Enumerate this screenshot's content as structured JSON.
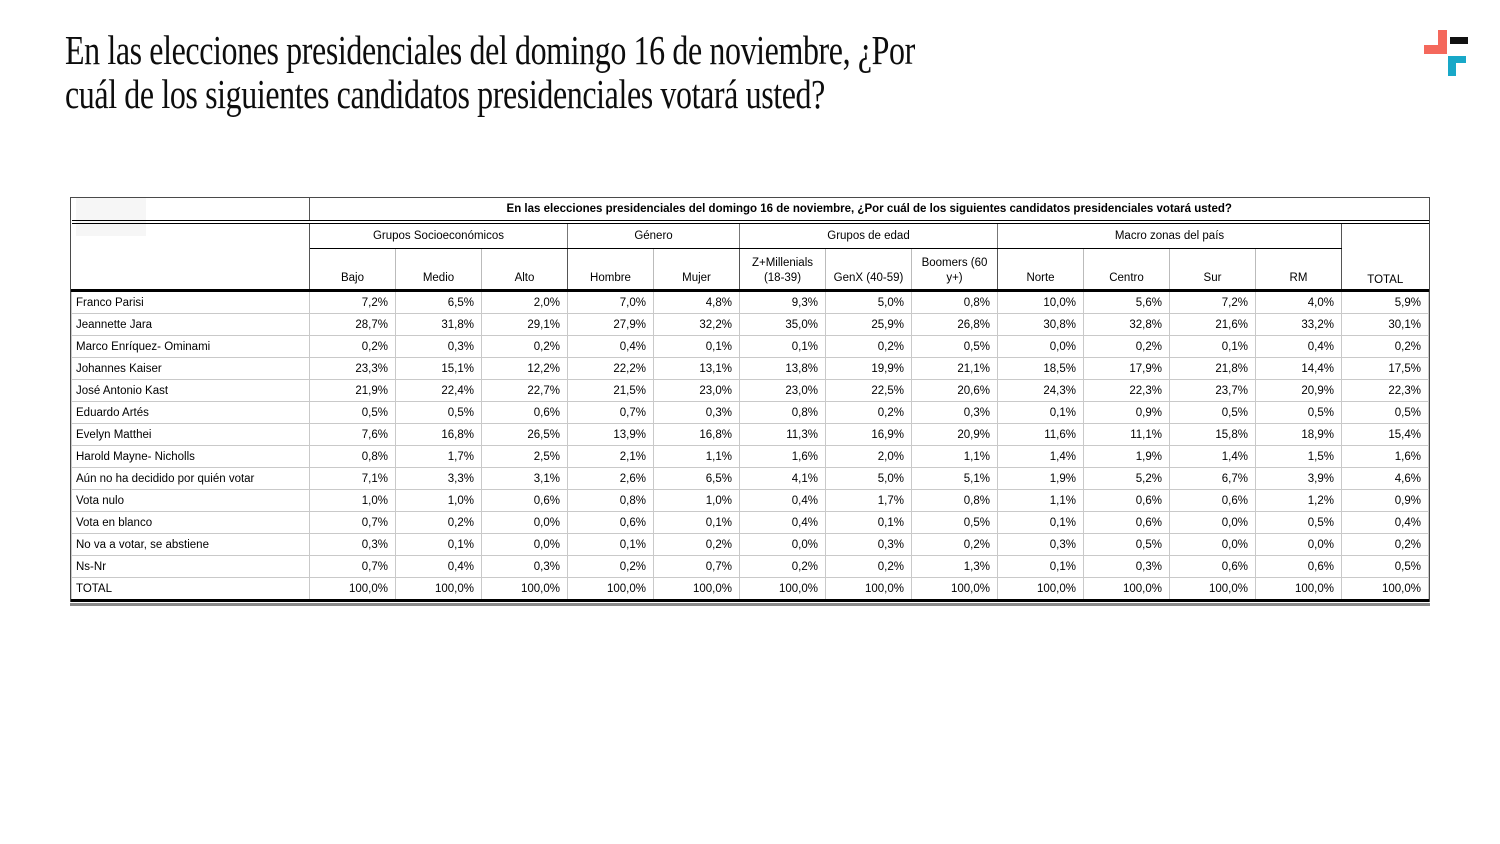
{
  "page": {
    "title": "En las elecciones presidenciales del domingo 16 de noviembre, ¿Por\ncuál de los siguientes candidatos presidenciales votará usted?"
  },
  "logo": {
    "name": "brand-mark",
    "colors": {
      "coral": "#F4685C",
      "teal": "#18A8C8",
      "black": "#111111"
    }
  },
  "table": {
    "question": "En las elecciones presidenciales del domingo 16 de noviembre, ¿Por cuál de los siguientes candidatos presidenciales votará usted?",
    "groups": [
      {
        "label": "Grupos Socioeconómicos",
        "span": 3
      },
      {
        "label": "Género",
        "span": 2
      },
      {
        "label": "Grupos de edad",
        "span": 3
      },
      {
        "label": "Macro zonas del país",
        "span": 4
      }
    ],
    "columns": [
      "Bajo",
      "Medio",
      "Alto",
      "Hombre",
      "Mujer",
      "Z+Millenials (18-39)",
      "GenX (40-59)",
      "Boomers (60 y+)",
      "Norte",
      "Centro",
      "Sur",
      "RM"
    ],
    "total_label": "TOTAL",
    "rows": [
      {
        "label": "Franco Parisi",
        "values": [
          "7,2%",
          "6,5%",
          "2,0%",
          "7,0%",
          "4,8%",
          "9,3%",
          "5,0%",
          "0,8%",
          "10,0%",
          "5,6%",
          "7,2%",
          "4,0%",
          "5,9%"
        ]
      },
      {
        "label": "Jeannette Jara",
        "values": [
          "28,7%",
          "31,8%",
          "29,1%",
          "27,9%",
          "32,2%",
          "35,0%",
          "25,9%",
          "26,8%",
          "30,8%",
          "32,8%",
          "21,6%",
          "33,2%",
          "30,1%"
        ]
      },
      {
        "label": "Marco Enríquez- Ominami",
        "values": [
          "0,2%",
          "0,3%",
          "0,2%",
          "0,4%",
          "0,1%",
          "0,1%",
          "0,2%",
          "0,5%",
          "0,0%",
          "0,2%",
          "0,1%",
          "0,4%",
          "0,2%"
        ]
      },
      {
        "label": "Johannes Kaiser",
        "values": [
          "23,3%",
          "15,1%",
          "12,2%",
          "22,2%",
          "13,1%",
          "13,8%",
          "19,9%",
          "21,1%",
          "18,5%",
          "17,9%",
          "21,8%",
          "14,4%",
          "17,5%"
        ]
      },
      {
        "label": "José Antonio Kast",
        "values": [
          "21,9%",
          "22,4%",
          "22,7%",
          "21,5%",
          "23,0%",
          "23,0%",
          "22,5%",
          "20,6%",
          "24,3%",
          "22,3%",
          "23,7%",
          "20,9%",
          "22,3%"
        ]
      },
      {
        "label": "Eduardo Artés",
        "values": [
          "0,5%",
          "0,5%",
          "0,6%",
          "0,7%",
          "0,3%",
          "0,8%",
          "0,2%",
          "0,3%",
          "0,1%",
          "0,9%",
          "0,5%",
          "0,5%",
          "0,5%"
        ]
      },
      {
        "label": "Evelyn Matthei",
        "values": [
          "7,6%",
          "16,8%",
          "26,5%",
          "13,9%",
          "16,8%",
          "11,3%",
          "16,9%",
          "20,9%",
          "11,6%",
          "11,1%",
          "15,8%",
          "18,9%",
          "15,4%"
        ]
      },
      {
        "label": "Harold Mayne- Nicholls",
        "values": [
          "0,8%",
          "1,7%",
          "2,5%",
          "2,1%",
          "1,1%",
          "1,6%",
          "2,0%",
          "1,1%",
          "1,4%",
          "1,9%",
          "1,4%",
          "1,5%",
          "1,6%"
        ]
      },
      {
        "label": "Aún no ha decidido por quién votar",
        "values": [
          "7,1%",
          "3,3%",
          "3,1%",
          "2,6%",
          "6,5%",
          "4,1%",
          "5,0%",
          "5,1%",
          "1,9%",
          "5,2%",
          "6,7%",
          "3,9%",
          "4,6%"
        ]
      },
      {
        "label": "Vota nulo",
        "values": [
          "1,0%",
          "1,0%",
          "0,6%",
          "0,8%",
          "1,0%",
          "0,4%",
          "1,7%",
          "0,8%",
          "1,1%",
          "0,6%",
          "0,6%",
          "1,2%",
          "0,9%"
        ]
      },
      {
        "label": "Vota en blanco",
        "values": [
          "0,7%",
          "0,2%",
          "0,0%",
          "0,6%",
          "0,1%",
          "0,4%",
          "0,1%",
          "0,5%",
          "0,1%",
          "0,6%",
          "0,0%",
          "0,5%",
          "0,4%"
        ]
      },
      {
        "label": "No va a votar, se abstiene",
        "values": [
          "0,3%",
          "0,1%",
          "0,0%",
          "0,1%",
          "0,2%",
          "0,0%",
          "0,3%",
          "0,2%",
          "0,3%",
          "0,5%",
          "0,0%",
          "0,0%",
          "0,2%"
        ]
      },
      {
        "label": "Ns-Nr",
        "values": [
          "0,7%",
          "0,4%",
          "0,3%",
          "0,2%",
          "0,7%",
          "0,2%",
          "0,2%",
          "1,3%",
          "0,1%",
          "0,3%",
          "0,6%",
          "0,6%",
          "0,5%"
        ]
      },
      {
        "label": "TOTAL",
        "values": [
          "100,0%",
          "100,0%",
          "100,0%",
          "100,0%",
          "100,0%",
          "100,0%",
          "100,0%",
          "100,0%",
          "100,0%",
          "100,0%",
          "100,0%",
          "100,0%",
          "100,0%"
        ]
      }
    ]
  }
}
